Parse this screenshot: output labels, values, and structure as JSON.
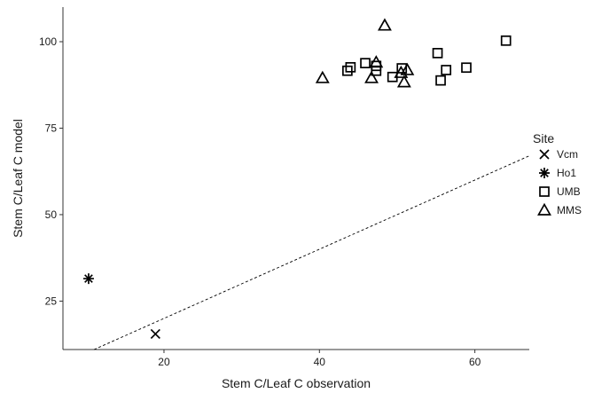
{
  "chart_data": {
    "type": "scatter",
    "xlabel": "Stem C/Leaf C observation",
    "ylabel": "Stem C/Leaf C model",
    "xlim": [
      7,
      67
    ],
    "ylim": [
      11,
      110
    ],
    "x_ticks": [
      {
        "value": 20,
        "label": "20"
      },
      {
        "value": 40,
        "label": "40"
      },
      {
        "value": 60,
        "label": "60"
      }
    ],
    "y_ticks": [
      {
        "value": 25,
        "label": "25"
      },
      {
        "value": 50,
        "label": "50"
      },
      {
        "value": 75,
        "label": "75"
      },
      {
        "value": 100,
        "label": "100"
      }
    ],
    "grid": false,
    "legend": {
      "title": "Site",
      "placement": "right",
      "entries": [
        {
          "label": "Vcm",
          "marker": "x"
        },
        {
          "label": "Ho1",
          "marker": "asterisk"
        },
        {
          "label": "UMB",
          "marker": "square"
        },
        {
          "label": "MMS",
          "marker": "triangle"
        }
      ]
    },
    "reference_line": {
      "style": "dashed",
      "slope": 1,
      "intercept": 0
    },
    "series": [
      {
        "name": "Vcm",
        "marker": "x",
        "points": [
          [
            18.9,
            15.5
          ]
        ]
      },
      {
        "name": "Ho1",
        "marker": "asterisk",
        "points": [
          [
            10.3,
            31.5
          ]
        ]
      },
      {
        "name": "UMB",
        "marker": "square",
        "points": [
          [
            43.6,
            91.6
          ],
          [
            44.0,
            92.6
          ],
          [
            45.9,
            93.8
          ],
          [
            47.3,
            91.6
          ],
          [
            47.3,
            93.0
          ],
          [
            49.4,
            89.8
          ],
          [
            50.6,
            92.3
          ],
          [
            55.2,
            96.7
          ],
          [
            55.6,
            88.8
          ],
          [
            56.3,
            91.8
          ],
          [
            58.9,
            92.5
          ],
          [
            64.0,
            100.3
          ]
        ]
      },
      {
        "name": "MMS",
        "marker": "triangle",
        "points": [
          [
            40.4,
            89.5
          ],
          [
            46.7,
            89.5
          ],
          [
            47.3,
            94.0
          ],
          [
            48.4,
            104.7
          ],
          [
            50.5,
            91.0
          ],
          [
            50.9,
            88.3
          ],
          [
            51.3,
            91.8
          ]
        ]
      }
    ]
  }
}
